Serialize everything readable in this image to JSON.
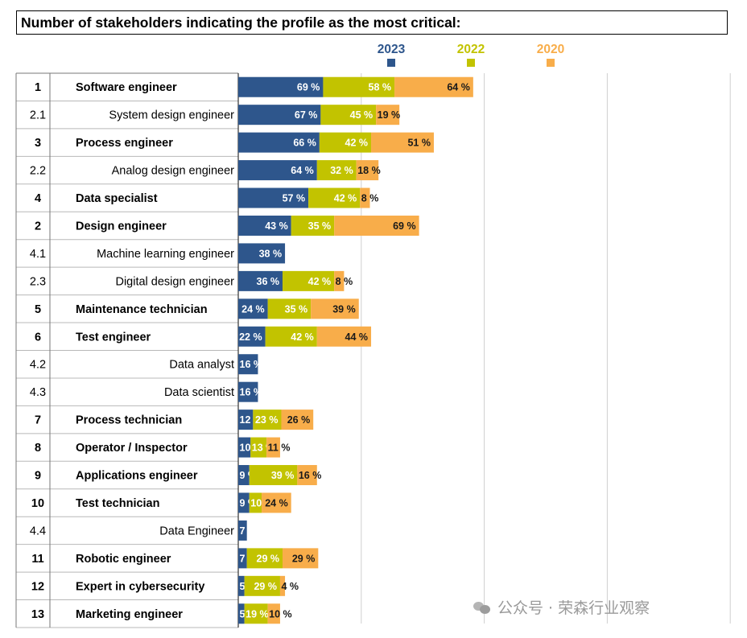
{
  "title": "Number of stakeholders indicating the profile as the most critical:",
  "colors": {
    "2023": "#2e568c",
    "2022": "#c2c300",
    "2020": "#f8ad4a",
    "grid": "#cfcfcf"
  },
  "watermark": "公众号 · 荣森行业观察",
  "footer_text": "",
  "chart_data": {
    "type": "bar",
    "orientation": "horizontal",
    "stacked": true,
    "value_unit": "%",
    "legend": {
      "placement": "top",
      "entries": [
        "2023",
        "2022",
        "2020"
      ]
    },
    "grid": true,
    "categories": [
      {
        "rank": "1",
        "label": "Software engineer",
        "bold": true
      },
      {
        "rank": "2.1",
        "label": "System design engineer",
        "bold": false
      },
      {
        "rank": "3",
        "label": "Process engineer",
        "bold": true
      },
      {
        "rank": "2.2",
        "label": "Analog design engineer",
        "bold": false
      },
      {
        "rank": "4",
        "label": "Data specialist",
        "bold": true
      },
      {
        "rank": "2",
        "label": "Design engineer",
        "bold": true
      },
      {
        "rank": "4.1",
        "label": "Machine learning engineer",
        "bold": false
      },
      {
        "rank": "2.3",
        "label": "Digital design engineer",
        "bold": false
      },
      {
        "rank": "5",
        "label": "Maintenance technician",
        "bold": true
      },
      {
        "rank": "6",
        "label": "Test engineer",
        "bold": true
      },
      {
        "rank": "4.2",
        "label": "Data analyst",
        "bold": false
      },
      {
        "rank": "4.3",
        "label": "Data scientist",
        "bold": false
      },
      {
        "rank": "7",
        "label": "Process technician",
        "bold": true
      },
      {
        "rank": "8",
        "label": "Operator / Inspector",
        "bold": true
      },
      {
        "rank": "9",
        "label": "Applications engineer",
        "bold": true
      },
      {
        "rank": "10",
        "label": "Test technician",
        "bold": true
      },
      {
        "rank": "4.4",
        "label": "Data Engineer",
        "bold": false
      },
      {
        "rank": "11",
        "label": "Robotic engineer",
        "bold": true
      },
      {
        "rank": "12",
        "label": "Expert in cybersecurity",
        "bold": true
      },
      {
        "rank": "13",
        "label": "Marketing engineer",
        "bold": true
      }
    ],
    "series": [
      {
        "name": "2023",
        "values": [
          69,
          67,
          66,
          64,
          57,
          43,
          38,
          36,
          24,
          22,
          16,
          16,
          12,
          10,
          9,
          9,
          7,
          7,
          5,
          5
        ]
      },
      {
        "name": "2022",
        "values": [
          58,
          45,
          42,
          32,
          42,
          35,
          null,
          42,
          35,
          42,
          null,
          null,
          23,
          13,
          39,
          10,
          null,
          29,
          29,
          19
        ]
      },
      {
        "name": "2020",
        "values": [
          64,
          19,
          51,
          18,
          8,
          69,
          null,
          8,
          39,
          44,
          null,
          null,
          26,
          11,
          16,
          24,
          null,
          29,
          4,
          10
        ]
      }
    ]
  }
}
